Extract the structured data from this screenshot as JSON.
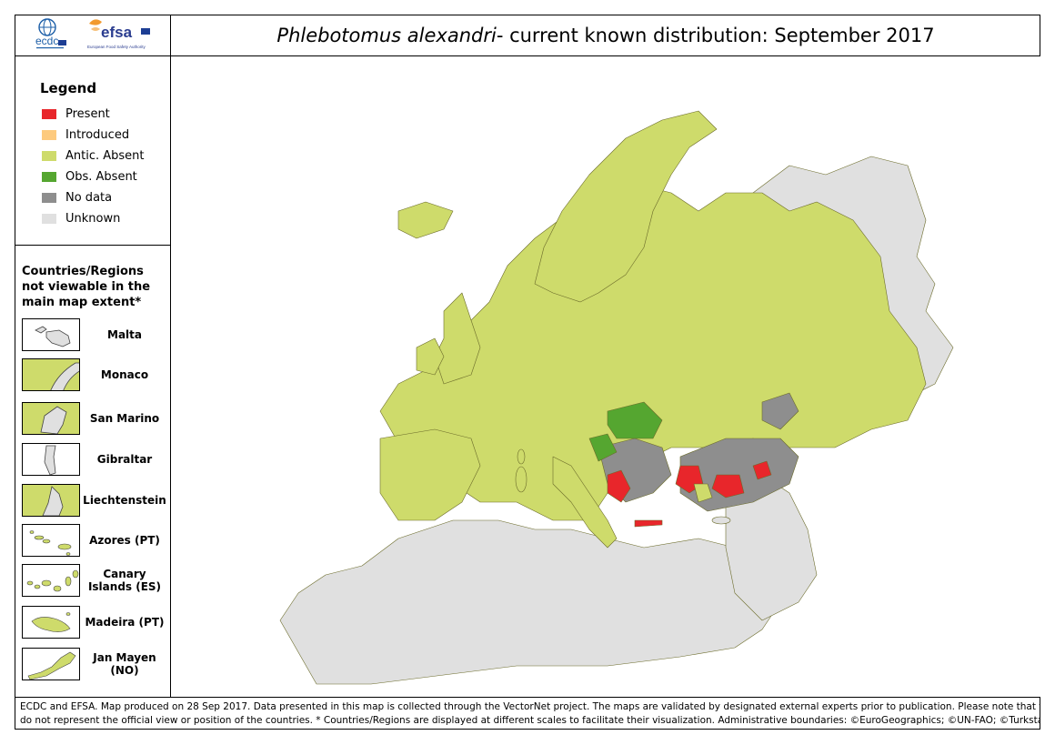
{
  "title": {
    "species": "Phlebotomus alexandri",
    "rest": " - current known distribution: September 2017"
  },
  "logos": {
    "ecdc": "ecdc",
    "efsa": "efsa",
    "efsa_sub": "European Food Safety Authority"
  },
  "legend": {
    "title": "Legend",
    "items": [
      {
        "label": "Present",
        "color": "#e8262b"
      },
      {
        "label": "Introduced",
        "color": "#fdca7e"
      },
      {
        "label": "Antic. Absent",
        "color": "#cedb6b"
      },
      {
        "label": "Obs. Absent",
        "color": "#55a630"
      },
      {
        "label": "No data",
        "color": "#8e8e8e"
      },
      {
        "label": "Unknown",
        "color": "#e0e0e0"
      }
    ]
  },
  "regions": {
    "title": "Countries/Regions not viewable in the main map extent*",
    "items": [
      {
        "label": "Malta",
        "status": "Unknown"
      },
      {
        "label": "Monaco",
        "status": "Antic. Absent"
      },
      {
        "label": "San Marino",
        "status": "Antic. Absent"
      },
      {
        "label": "Gibraltar",
        "status": "Unknown"
      },
      {
        "label": "Liechtenstein",
        "status": "Antic. Absent"
      },
      {
        "label": "Azores (PT)",
        "status": "Antic. Absent"
      },
      {
        "label": "Canary Islands (ES)",
        "status": "Antic. Absent"
      },
      {
        "label": "Madeira (PT)",
        "status": "Antic. Absent"
      },
      {
        "label": "Jan Mayen (NO)",
        "status": "Antic. Absent"
      }
    ]
  },
  "footer": {
    "line1": "ECDC and EFSA. Map produced on 28 Sep 2017. Data presented in this map is collected through the VectorNet project. The maps are validated by designated external experts prior to publication. Please note that the data",
    "line2": "do not represent the official view or position of the countries. * Countries/Regions are displayed at different scales to facilitate their visualization. Administrative boundaries: ©EuroGeographics; ©UN-FAO; ©Turkstat."
  },
  "colors": {
    "present": "#e8262b",
    "antic_absent": "#cedb6b",
    "obs_absent": "#55a630",
    "no_data": "#8e8e8e",
    "unknown": "#e0e0e0",
    "border": "#6b6b2a",
    "ecdc_blue": "#1d5fa8",
    "efsa_blue": "#2a3c8f",
    "efsa_orange": "#f29a2e"
  }
}
